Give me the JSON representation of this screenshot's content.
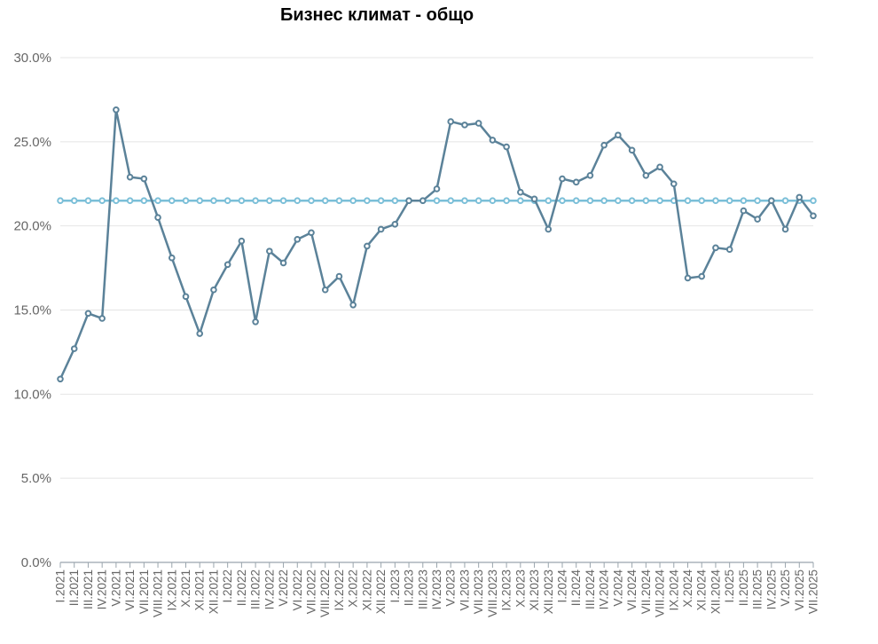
{
  "chart_data": {
    "type": "line",
    "title": "Бизнес климат - общо",
    "xlabel": "",
    "ylabel": "",
    "ylim": [
      0,
      30
    ],
    "yticks": [
      "0.0%",
      "5.0%",
      "10.0%",
      "15.0%",
      "20.0%",
      "25.0%",
      "30.0%"
    ],
    "grid": true,
    "categories": [
      "I.2021",
      "II.2021",
      "III.2021",
      "IV.2021",
      "V.2021",
      "VI.2021",
      "VII.2021",
      "VIII.2021",
      "IX.2021",
      "X.2021",
      "XI.2021",
      "XII.2021",
      "I.2022",
      "II.2022",
      "III.2022",
      "IV.2022",
      "V.2022",
      "VI.2022",
      "VII.2022",
      "VIII.2022",
      "IX.2022",
      "X.2022",
      "XI.2022",
      "XII.2022",
      "I.2023",
      "II.2023",
      "III.2023",
      "IV.2023",
      "V.2023",
      "VI.2023",
      "VII.2023",
      "VIII.2023",
      "IX.2023",
      "X.2023",
      "XI.2023",
      "XII.2023",
      "I.2024",
      "II.2024",
      "III.2024",
      "IV.2024",
      "V.2024",
      "VI.2024",
      "VII.2024",
      "VIII.2024",
      "IX.2024",
      "X.2024",
      "XI.2024",
      "XII.2024",
      "I.2025",
      "II.2025",
      "III.2025",
      "IV.2025",
      "V.2025",
      "VI.2025",
      "VII.2025"
    ],
    "series": [
      {
        "name": "",
        "color": "#5b8299",
        "values": [
          10.9,
          12.7,
          14.8,
          14.5,
          26.9,
          22.9,
          22.8,
          20.5,
          18.1,
          15.8,
          13.6,
          16.2,
          17.7,
          19.1,
          14.3,
          18.5,
          17.8,
          19.2,
          19.6,
          16.2,
          17.0,
          15.3,
          18.8,
          19.8,
          20.1,
          21.5,
          21.5,
          22.2,
          26.2,
          26.0,
          26.1,
          25.1,
          24.7,
          22.0,
          21.6,
          19.8,
          22.8,
          22.6,
          23.0,
          24.8,
          25.4,
          24.5,
          23.0,
          23.5,
          22.5,
          16.9,
          17.0,
          18.7,
          18.6,
          20.9,
          20.4,
          21.5,
          19.8,
          21.7,
          20.6
        ]
      },
      {
        "name": "",
        "color": "#7bbfd8",
        "values": [
          21.5,
          21.5,
          21.5,
          21.5,
          21.5,
          21.5,
          21.5,
          21.5,
          21.5,
          21.5,
          21.5,
          21.5,
          21.5,
          21.5,
          21.5,
          21.5,
          21.5,
          21.5,
          21.5,
          21.5,
          21.5,
          21.5,
          21.5,
          21.5,
          21.5,
          21.5,
          21.5,
          21.5,
          21.5,
          21.5,
          21.5,
          21.5,
          21.5,
          21.5,
          21.5,
          21.5,
          21.5,
          21.5,
          21.5,
          21.5,
          21.5,
          21.5,
          21.5,
          21.5,
          21.5,
          21.5,
          21.5,
          21.5,
          21.5,
          21.5,
          21.5,
          21.5,
          21.5,
          21.5,
          21.5
        ]
      }
    ]
  }
}
